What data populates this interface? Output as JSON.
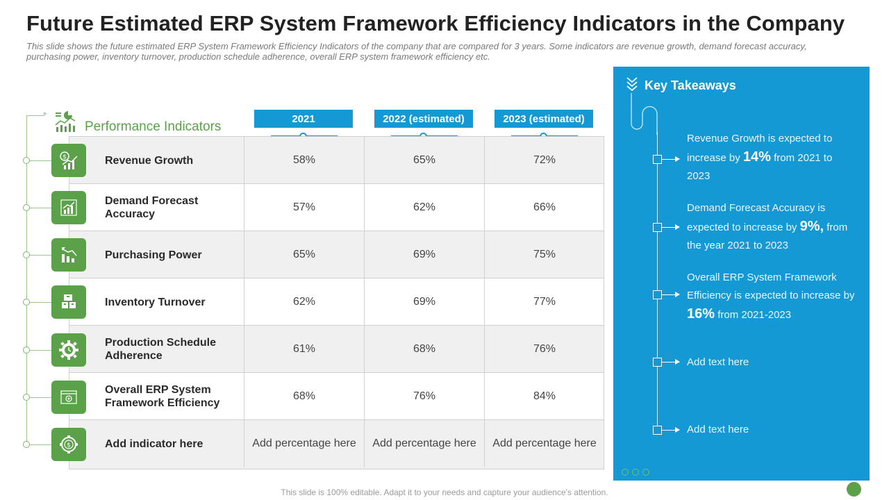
{
  "title": "Future Estimated ERP System Framework Efficiency Indicators in the Company",
  "subtitle": "This slide shows the future estimated ERP System Framework Efficiency Indicators of the company that are compared for 3 years. Some indicators are revenue growth, demand forecast accuracy, purchasing power, inventory turnover, production schedule adherence, overall ERP system framework efficiency etc.",
  "performance_header": "Performance Indicators",
  "columns": [
    "2021",
    "2022 (estimated)",
    "2023 (estimated)"
  ],
  "rows": [
    {
      "name": "Revenue Growth",
      "icon": "revenue-chart-icon",
      "values": [
        "58%",
        "65%",
        "72%"
      ]
    },
    {
      "name": "Demand Forecast Accuracy",
      "icon": "bar-chart-growth-icon",
      "values": [
        "57%",
        "62%",
        "66%"
      ]
    },
    {
      "name": "Purchasing Power",
      "icon": "decline-chart-icon",
      "values": [
        "65%",
        "69%",
        "75%"
      ]
    },
    {
      "name": "Inventory Turnover",
      "icon": "boxes-icon",
      "values": [
        "62%",
        "69%",
        "77%"
      ]
    },
    {
      "name": "Production Schedule Adherence",
      "icon": "gear-clock-icon",
      "values": [
        "61%",
        "68%",
        "76%"
      ]
    },
    {
      "name": "Overall ERP System Framework Efficiency",
      "icon": "browser-window-icon",
      "values": [
        "68%",
        "76%",
        "84%"
      ]
    },
    {
      "name": "Add indicator here",
      "icon": "gear-dollar-icon",
      "values": [
        "Add percentage here",
        "Add percentage here",
        "Add percentage here"
      ]
    }
  ],
  "takeaways": {
    "title": "Key Takeaways",
    "items": [
      {
        "pre": "Revenue Growth is expected to increase by",
        "highlight": "14%",
        "post": "from 2021 to 2023"
      },
      {
        "pre": "Demand Forecast Accuracy is expected to increase by",
        "highlight": "9%,",
        "post": "from the year 2021 to 2023"
      },
      {
        "pre": "Overall ERP System Framework Efficiency is expected to increase by",
        "highlight": "16%",
        "post": "from 2021-2023"
      },
      {
        "pre": "Add text here",
        "highlight": "",
        "post": ""
      },
      {
        "pre": "Add text here",
        "highlight": "",
        "post": ""
      }
    ]
  },
  "footer": "This slide is 100% editable. Adapt it to your needs and capture your audience's attention.",
  "colors": {
    "accent_blue": "#1499d5",
    "accent_green": "#5ba14a"
  }
}
